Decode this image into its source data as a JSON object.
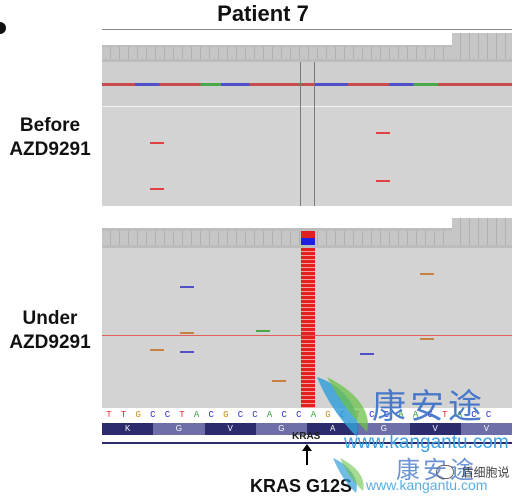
{
  "title": "Patient 7",
  "labels": {
    "before_line1": "Before",
    "before_line2": "AZD9291",
    "under_line1": "Under",
    "under_line2": "AZD9291"
  },
  "sequence": [
    "T",
    "T",
    "G",
    "C",
    "C",
    "T",
    "A",
    "C",
    "G",
    "C",
    "C",
    "A",
    "C",
    "C",
    "A",
    "G",
    "C",
    "T",
    "C",
    "C",
    "A",
    "A",
    "C",
    "T",
    "A",
    "C",
    "C"
  ],
  "amino_acids": [
    "K",
    "G",
    "V",
    "G",
    "A",
    "G",
    "V",
    "V"
  ],
  "gene_label": "KRAS",
  "mutation_label": "KRAS G12S",
  "watermark": {
    "brand_cn": "康安途",
    "url": "www.kangantu.com",
    "social": "盾细胞说"
  },
  "colors": {
    "panel_bg": "#d3d3d3",
    "coverage_bg": "#bdbdbd",
    "mutation_red": "#e02020",
    "ref_blue": "#2020e0",
    "aa_dark": "#2b2b6e",
    "aa_light": "#6e6ea8"
  }
}
